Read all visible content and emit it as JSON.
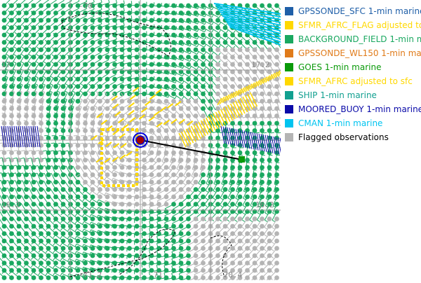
{
  "legend": [
    {
      "label": "GPSSONDE_SFC 1-min marine",
      "color": "#1f5fa8"
    },
    {
      "label": "SFMR_AFRC_FLAG adjusted to",
      "color": "#ffd800"
    },
    {
      "label": "BACKGROUND_FIELD 1-min m",
      "color": "#1aa860"
    },
    {
      "label": "GPSSONDE_WL150 1-min mar",
      "color": "#e07b1a"
    },
    {
      "label": "GOES 1-min marine",
      "color": "#0a9a0a"
    },
    {
      "label": "SFMR_AFRC adjusted to sfc",
      "color": "#ffd800"
    },
    {
      "label": "SHIP 1-min marine",
      "color": "#12a090"
    },
    {
      "label": "MOORED_BUOY 1-min marine",
      "color": "#0a0aa8"
    },
    {
      "label": "CMAN 1-min marine",
      "color": "#00c4f0"
    },
    {
      "label": "Flagged observations",
      "color": "#b4b4b4",
      "text_color": "#000000"
    }
  ],
  "grid_labels": {
    "top": "-70",
    "right_upper": "17.2",
    "right_lower": "16.2",
    "left_upper": "17",
    "left_lower": "16.2",
    "bottom_left": "-71.2",
    "bottom_mid": "-71",
    "bottom_right": "-70.4"
  },
  "storm_center": {
    "marker_colors": [
      "#a00000",
      "#0000dd"
    ]
  },
  "colors": {
    "background_field": "#1aa860",
    "flagged": "#b4b4b4",
    "sfmr": "#ffd800",
    "buoy": "#0a0aa8",
    "cman": "#00c4f0",
    "track": "#000000",
    "gridline": "#999999",
    "coastline": "#000000"
  }
}
